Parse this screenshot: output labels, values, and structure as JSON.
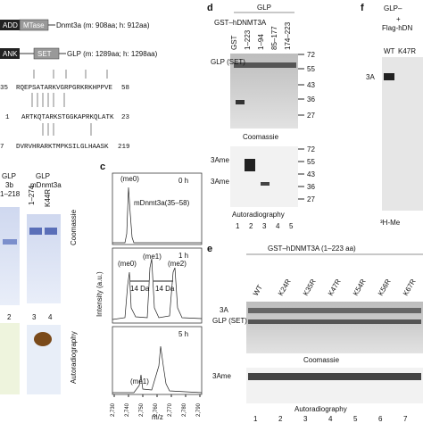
{
  "panel_a": {
    "domains": [
      {
        "boxes": [
          "ADD",
          "MTase"
        ],
        "label": "Dnmt3a (m: 908aa; h: 912aa)"
      },
      {
        "boxes": [
          "ANK",
          "SET"
        ],
        "label": "GLP (m: 1289aa; h: 1298aa)"
      }
    ],
    "sequences": [
      {
        "start": "35",
        "seq": "RQEPSATARKVGRPGRKRKHPPVE",
        "end": "58"
      },
      {
        "start": "1",
        "seq": "ARTKQTARKSTGGKAPRKQLATK",
        "end": "23"
      },
      {
        "start": "7",
        "seq": "DVRVHRARKTMPKSILGLHAASK",
        "end": "219"
      }
    ],
    "gel_left": {
      "enzyme": "GLP",
      "substrate": "3b",
      "construct": "1–218",
      "lane": "2"
    },
    "gel_right": {
      "enzyme": "GLP",
      "substrate": "mDnmt3a",
      "lanes": [
        "1–274",
        "K44R"
      ],
      "numbers": [
        "3",
        "4"
      ]
    },
    "stain": "Coomassie",
    "autoradiography": "Autoradiography"
  },
  "panel_c": {
    "letter": "c",
    "y_label": "Intensity (a.u.)",
    "x_label": "m/z",
    "xticks": [
      "2,730",
      "2,740",
      "2,750",
      "2,760",
      "2,770",
      "2,780",
      "2,790"
    ],
    "plots": [
      {
        "time": "0 h",
        "peaks": [
          "(me0)"
        ],
        "note": "mDnmt3a(35–58)"
      },
      {
        "time": "1 h",
        "peaks": [
          "(me0)",
          "(me1)",
          "(me2)"
        ],
        "shifts": [
          "14 Da",
          "14 Da"
        ]
      },
      {
        "time": "5 h",
        "peaks": [
          "(me1)"
        ]
      }
    ]
  },
  "panel_d": {
    "letter": "d",
    "enzyme": "GLP",
    "substrate": "GST–hDNMT3A",
    "lanes": [
      "GST",
      "1–223",
      "1–94",
      "85–177",
      "174–223"
    ],
    "band_label": "GLP (SET)",
    "markers": [
      "72",
      "55",
      "43",
      "36",
      "27"
    ],
    "stain": "Coomassie",
    "auto_labels": [
      "3Ame",
      "3Ame"
    ],
    "auto_markers": [
      "72",
      "55",
      "43",
      "36",
      "27"
    ],
    "autoradiography": "Autoradiography",
    "numbers": [
      "1",
      "2",
      "3",
      "4",
      "5"
    ]
  },
  "panel_e": {
    "letter": "e",
    "title": "GST–hDNMT3A (1–223 aa)",
    "lanes": [
      "WT",
      "K24R",
      "K35R",
      "K47R",
      "K54R",
      "K56R",
      "K67R"
    ],
    "band_labels": [
      "3A",
      "GLP (SET)"
    ],
    "stain": "Coomassie",
    "auto_label": "3Ame",
    "autoradiography": "Autoradiography",
    "numbers": [
      "1",
      "2",
      "3",
      "4",
      "5",
      "6",
      "7"
    ]
  },
  "panel_f": {
    "letter": "f",
    "enzyme": "GLP–",
    "plus": "+",
    "substrate": "Flag-hDN",
    "lanes": [
      "WT",
      "K47R"
    ],
    "band": "3A",
    "label": "³H-Me"
  }
}
